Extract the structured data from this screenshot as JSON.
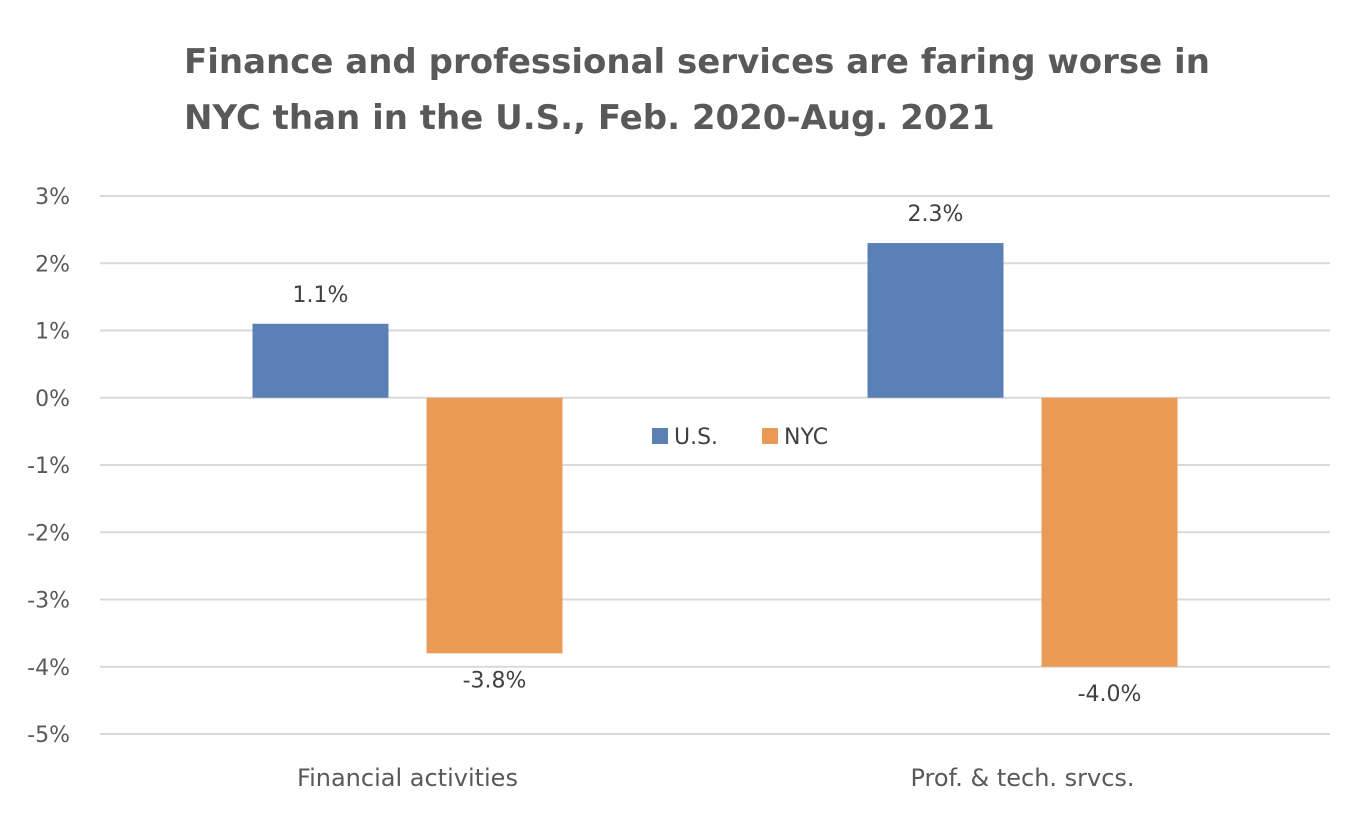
{
  "chart_data": {
    "type": "bar",
    "title_lines": [
      "Finance and professional services are faring worse in",
      "NYC than in the U.S., Feb. 2020-Aug. 2021"
    ],
    "categories": [
      "Financial activities",
      "Prof. & tech. srvcs."
    ],
    "series": [
      {
        "name": "U.S.",
        "color": "#5B80B8",
        "values": [
          1.1,
          2.3
        ],
        "labels": [
          "1.1%",
          "2.3%"
        ]
      },
      {
        "name": "NYC",
        "color": "#E99B55",
        "values": [
          -3.8,
          -4.0
        ],
        "labels": [
          "-3.8%",
          "-4.0%"
        ]
      }
    ],
    "ylim": [
      -5,
      3
    ],
    "yticks": [
      3,
      2,
      1,
      0,
      -1,
      -2,
      -3,
      -4,
      -5
    ],
    "ytick_labels": [
      "3%",
      "2%",
      "1%",
      "0%",
      "-1%",
      "-2%",
      "-3%",
      "-4%",
      "-5%"
    ],
    "grid": true,
    "legend_position": "center"
  }
}
